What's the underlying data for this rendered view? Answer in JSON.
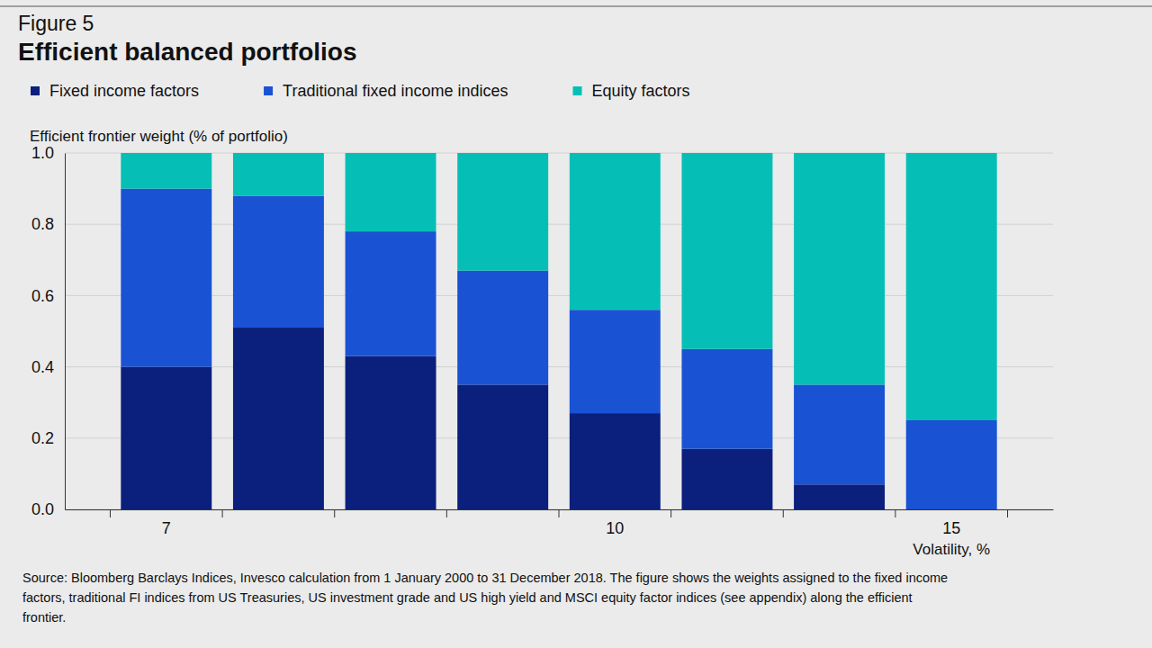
{
  "chart_data": {
    "type": "bar",
    "figure_label": "Figure 5",
    "title": "Efficient balanced portfolios",
    "y_label": "Efficient frontier weight (% of portfolio)",
    "x_label": "Volatility, %",
    "stacked": true,
    "grid": true,
    "legend": "top-left",
    "categories": [
      "7",
      null,
      null,
      null,
      "10",
      null,
      null,
      "15"
    ],
    "series": [
      {
        "name": "Fixed income factors",
        "color": "#0b1f7c",
        "values": [
          0.4,
          0.51,
          0.43,
          0.35,
          0.27,
          0.17,
          0.07,
          0
        ]
      },
      {
        "name": "Traditional fixed income indices",
        "color": "#1a52d4",
        "values": [
          0.5,
          0.37,
          0.35,
          0.32,
          0.29,
          0.28,
          0.28,
          0.25
        ]
      },
      {
        "name": "Equity factors",
        "color": "#05bfb6",
        "values": [
          0.1,
          0.12,
          0.22,
          0.33,
          0.44,
          0.55,
          0.65,
          0.75
        ]
      }
    ],
    "ylim": [
      0,
      1
    ],
    "yticks": [
      {
        "value": 0,
        "label": "0.0"
      },
      0.2,
      0.4,
      0.6,
      0.8,
      {
        "value": 1,
        "label": "1.0"
      }
    ],
    "source": [
      "Source: Bloomberg Barclays Indices, Invesco calculation from 1 January 2000 to 31 December 2018. The figure shows the weights assigned to the fixed income",
      "factors, traditional FI indices from US Treasuries, US investment grade and US high yield and MSCI equity factor indices (see appendix) along the efficient",
      "frontier."
    ]
  }
}
